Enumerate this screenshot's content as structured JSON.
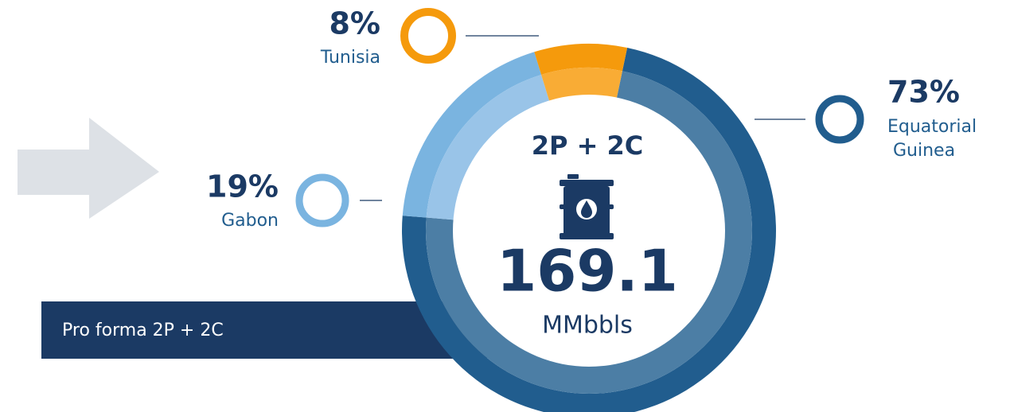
{
  "chart_data": {
    "type": "pie",
    "categories": [
      "Equatorial Guinea",
      "Gabon",
      "Tunisia"
    ],
    "values": [
      73,
      19,
      8
    ],
    "value_labels": [
      "73%",
      "19%",
      "8%"
    ],
    "colors": [
      "#215d8e",
      "#7ab4e0",
      "#f59a0c"
    ],
    "inner_colors": [
      "#4c7ea5",
      "#99c4e8",
      "#f9ac35"
    ],
    "center": {
      "label": "2P + 2C",
      "value": 169.1,
      "unit": "MMbbls"
    },
    "banner": "Pro forma 2P + 2C"
  }
}
